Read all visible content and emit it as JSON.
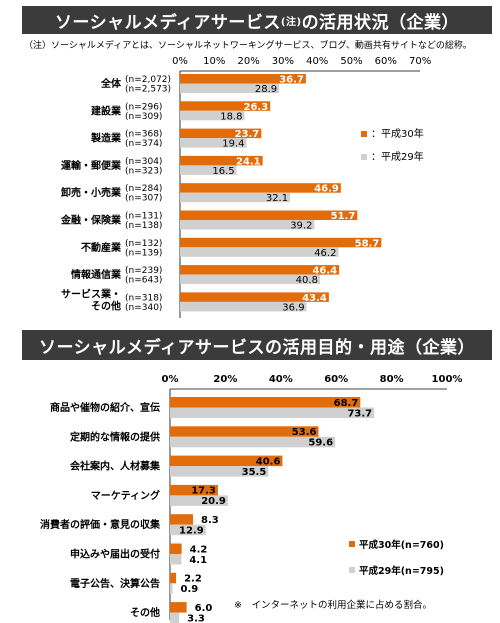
{
  "titles": {
    "top_main": "ソーシャルメディアサービス",
    "top_small": "(注)",
    "top_rest": "の活用状況（企業）",
    "bottom": "ソーシャルメディアサービスの活用目的・用途（企業）"
  },
  "note": "（注）ソーシャルメディアとは、ソーシャルネットワーキングサービス、ブログ、動画共有サイトなどの総称。",
  "footnote": "※　インターネットの利用企業に占める割合。",
  "colors": {
    "current": "#e36c0a",
    "previous": "#d0d0d0"
  },
  "chart_data": [
    {
      "type": "bar",
      "orientation": "horizontal",
      "categories": [
        "全体",
        "建設業",
        "製造業",
        "運輸・郵便業",
        "卸売・小売業",
        "金融・保険業",
        "不動産業",
        "情報通信業",
        "サービス業・その他"
      ],
      "n_current": [
        "(n=2,072)",
        "(n=296)",
        "(n=368)",
        "(n=304)",
        "(n=284)",
        "(n=131)",
        "(n=132)",
        "(n=239)",
        "(n=318)"
      ],
      "n_previous": [
        "(n=2,573)",
        "(n=309)",
        "(n=374)",
        "(n=323)",
        "(n=307)",
        "(n=138)",
        "(n=139)",
        "(n=643)",
        "(n=340)"
      ],
      "series": [
        {
          "name": "：平成30年",
          "values": [
            36.7,
            26.3,
            23.7,
            24.1,
            46.9,
            51.7,
            58.7,
            46.4,
            43.4
          ]
        },
        {
          "name": "：平成29年",
          "values": [
            28.9,
            18.8,
            19.4,
            16.5,
            32.1,
            39.2,
            46.2,
            40.8,
            36.9
          ]
        }
      ],
      "xlim": [
        0,
        70
      ],
      "ticks": [
        "0%",
        "10%",
        "20%",
        "30%",
        "40%",
        "50%",
        "60%",
        "70%"
      ],
      "legend_position": "right"
    },
    {
      "type": "bar",
      "orientation": "horizontal",
      "categories": [
        "商品や催物の紹介、宣伝",
        "定期的な情報の提供",
        "会社案内、人材募集",
        "マーケティング",
        "消費者の評価・意見の収集",
        "申込みや届出の受付",
        "電子公告、決算公告",
        "その他"
      ],
      "series": [
        {
          "name": "平成30年(n=760)",
          "values": [
            68.7,
            53.6,
            40.6,
            17.3,
            8.3,
            4.2,
            2.2,
            6.0
          ]
        },
        {
          "name": "平成29年(n=795)",
          "values": [
            73.7,
            59.6,
            35.5,
            20.9,
            12.9,
            4.1,
            0.9,
            3.3
          ]
        }
      ],
      "value_labels_current": [
        "68.7",
        "53.6",
        "40.6",
        "17.3",
        "8.3",
        "4.2",
        "2.2",
        "6.0"
      ],
      "value_labels_previous": [
        "73.7",
        "59.6",
        "35.5",
        "20.9",
        "12.9",
        "4.1",
        "0.9",
        "3.3"
      ],
      "xlim": [
        0,
        100
      ],
      "ticks": [
        "0%",
        "20%",
        "40%",
        "60%",
        "80%",
        "100%"
      ],
      "legend_position": "bottom-right"
    }
  ]
}
